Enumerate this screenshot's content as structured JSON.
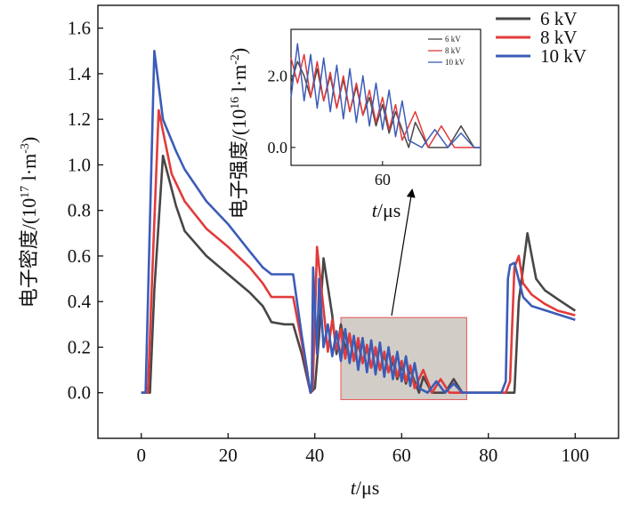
{
  "chart_data": {
    "type": "line",
    "title": "",
    "xlabel_italic": "t",
    "xlabel_unit": "/μs",
    "ylabel_text": "电子密度/(10",
    "ylabel_exp": "17",
    "ylabel_unit": " l·m",
    "ylabel_unit_exp": "-3",
    "ylabel_close": ")",
    "xlim": [
      -10,
      110
    ],
    "ylim": [
      -0.2,
      1.7
    ],
    "x_ticks": [
      0,
      20,
      40,
      60,
      80,
      100
    ],
    "y_ticks": [
      0.0,
      0.2,
      0.4,
      0.6,
      0.8,
      1.0,
      1.2,
      1.4,
      1.6
    ],
    "x_tick_labels": [
      "0",
      "20",
      "40",
      "60",
      "80",
      "100"
    ],
    "y_tick_labels": [
      "0.0",
      "0.2",
      "0.4",
      "0.6",
      "0.8",
      "1.0",
      "1.2",
      "1.4",
      "1.6"
    ],
    "legend_position": "top-right",
    "series": [
      {
        "name": "6 kV",
        "color": "#4a4646",
        "points": [
          [
            0,
            0
          ],
          [
            2,
            0
          ],
          [
            3,
            0.45
          ],
          [
            5,
            1.04
          ],
          [
            8,
            0.82
          ],
          [
            10,
            0.71
          ],
          [
            15,
            0.6
          ],
          [
            20,
            0.52
          ],
          [
            25,
            0.44
          ],
          [
            28,
            0.38
          ],
          [
            30,
            0.31
          ],
          [
            33,
            0.3
          ],
          [
            35,
            0.3
          ],
          [
            37,
            0.17
          ],
          [
            39,
            0
          ],
          [
            40,
            0.02
          ],
          [
            41,
            0.25
          ],
          [
            42,
            0.59
          ],
          [
            44,
            0.34
          ],
          [
            45,
            0.17
          ],
          [
            46,
            0.3
          ],
          [
            47,
            0.19
          ],
          [
            48,
            0.25
          ],
          [
            49,
            0.14
          ],
          [
            50,
            0.22
          ],
          [
            51,
            0.13
          ],
          [
            52,
            0.2
          ],
          [
            53,
            0.11
          ],
          [
            54,
            0.19
          ],
          [
            55,
            0.1
          ],
          [
            56,
            0.17
          ],
          [
            57,
            0.09
          ],
          [
            58,
            0.14
          ],
          [
            59,
            0.06
          ],
          [
            60,
            0.12
          ],
          [
            61,
            0.04
          ],
          [
            62,
            0.1
          ],
          [
            64,
            0
          ],
          [
            65,
            0.07
          ],
          [
            67,
            0
          ],
          [
            70,
            0
          ],
          [
            72,
            0.06
          ],
          [
            74,
            0
          ],
          [
            80,
            0
          ],
          [
            86,
            0
          ],
          [
            87,
            0.4
          ],
          [
            88,
            0.55
          ],
          [
            89,
            0.7
          ],
          [
            91,
            0.5
          ],
          [
            93,
            0.45
          ],
          [
            96,
            0.41
          ],
          [
            100,
            0.36
          ]
        ]
      },
      {
        "name": "8 kV",
        "color": "#e23b3b",
        "points": [
          [
            0,
            0
          ],
          [
            1.5,
            0
          ],
          [
            2.5,
            0.5
          ],
          [
            4,
            1.24
          ],
          [
            7,
            0.96
          ],
          [
            10,
            0.84
          ],
          [
            15,
            0.72
          ],
          [
            20,
            0.64
          ],
          [
            25,
            0.55
          ],
          [
            28,
            0.48
          ],
          [
            30,
            0.42
          ],
          [
            33,
            0.42
          ],
          [
            35,
            0.42
          ],
          [
            37,
            0.22
          ],
          [
            39,
            0
          ],
          [
            39.5,
            0.02
          ],
          [
            40,
            0.32
          ],
          [
            40.5,
            0.64
          ],
          [
            42,
            0.37
          ],
          [
            43,
            0.18
          ],
          [
            44,
            0.32
          ],
          [
            45,
            0.19
          ],
          [
            46,
            0.28
          ],
          [
            47,
            0.15
          ],
          [
            48,
            0.26
          ],
          [
            49,
            0.14
          ],
          [
            50,
            0.24
          ],
          [
            51,
            0.13
          ],
          [
            52,
            0.21
          ],
          [
            53,
            0.11
          ],
          [
            54,
            0.2
          ],
          [
            55,
            0.1
          ],
          [
            56,
            0.18
          ],
          [
            57,
            0.09
          ],
          [
            58,
            0.16
          ],
          [
            59,
            0.07
          ],
          [
            60,
            0.14
          ],
          [
            61,
            0.05
          ],
          [
            62,
            0.12
          ],
          [
            63,
            0.02
          ],
          [
            65,
            0.1
          ],
          [
            67,
            0
          ],
          [
            69,
            0.06
          ],
          [
            71,
            0
          ],
          [
            80,
            0
          ],
          [
            84,
            0
          ],
          [
            85,
            0.05
          ],
          [
            86,
            0.55
          ],
          [
            87,
            0.6
          ],
          [
            88,
            0.48
          ],
          [
            90,
            0.43
          ],
          [
            93,
            0.39
          ],
          [
            96,
            0.36
          ],
          [
            100,
            0.34
          ]
        ]
      },
      {
        "name": "10 kV",
        "color": "#3b5cb8",
        "points": [
          [
            0,
            0
          ],
          [
            1,
            0
          ],
          [
            1.8,
            0.6
          ],
          [
            3,
            1.5
          ],
          [
            5,
            1.2
          ],
          [
            8,
            1.06
          ],
          [
            10,
            0.98
          ],
          [
            15,
            0.84
          ],
          [
            20,
            0.74
          ],
          [
            25,
            0.62
          ],
          [
            28,
            0.55
          ],
          [
            30,
            0.52
          ],
          [
            33,
            0.52
          ],
          [
            35,
            0.52
          ],
          [
            37,
            0.25
          ],
          [
            39,
            0
          ],
          [
            39.3,
            0.02
          ],
          [
            39.6,
            0.55
          ],
          [
            40.5,
            0.17
          ],
          [
            41,
            0.5
          ],
          [
            42,
            0.2
          ],
          [
            43,
            0.3
          ],
          [
            44,
            0.16
          ],
          [
            45,
            0.27
          ],
          [
            46,
            0.14
          ],
          [
            47,
            0.28
          ],
          [
            48,
            0.13
          ],
          [
            49,
            0.25
          ],
          [
            50,
            0.1
          ],
          [
            51,
            0.24
          ],
          [
            52,
            0.09
          ],
          [
            53,
            0.23
          ],
          [
            54,
            0.08
          ],
          [
            55,
            0.22
          ],
          [
            56,
            0.07
          ],
          [
            57,
            0.2
          ],
          [
            58,
            0.06
          ],
          [
            59,
            0.18
          ],
          [
            60,
            0.05
          ],
          [
            61,
            0.16
          ],
          [
            62,
            0.03
          ],
          [
            63,
            0.13
          ],
          [
            64,
            0.02
          ],
          [
            66,
            0
          ],
          [
            68,
            0.05
          ],
          [
            70,
            0
          ],
          [
            72,
            0.04
          ],
          [
            74,
            0
          ],
          [
            80,
            0
          ],
          [
            83,
            0
          ],
          [
            84,
            0.05
          ],
          [
            84.5,
            0.5
          ],
          [
            85,
            0.56
          ],
          [
            86,
            0.57
          ],
          [
            88,
            0.42
          ],
          [
            90,
            0.38
          ],
          [
            95,
            0.35
          ],
          [
            100,
            0.32
          ]
        ]
      }
    ],
    "highlight_box": {
      "x": [
        46,
        75
      ],
      "y": [
        -0.03,
        0.33
      ]
    },
    "inset": {
      "xlabel_italic": "t",
      "xlabel_unit": "/μs",
      "ylabel_text": "电子强度/(10",
      "ylabel_exp": "16",
      "ylabel_unit": " l·m",
      "ylabel_unit_exp": "-2",
      "ylabel_close": ")",
      "xlim": [
        46,
        75
      ],
      "ylim": [
        -0.5,
        3.3
      ],
      "x_ticks": [
        60
      ],
      "y_ticks": [
        0.0,
        2.0
      ],
      "x_tick_labels": [
        "60"
      ],
      "y_tick_labels": [
        "0.0",
        "2.0"
      ],
      "legend_position": "top-left",
      "series": [
        {
          "name": "6 kV",
          "color": "#4a4646",
          "points": [
            [
              46,
              1.8
            ],
            [
              47,
              2.4
            ],
            [
              48,
              2.0
            ],
            [
              49,
              1.4
            ],
            [
              50,
              2.2
            ],
            [
              51,
              1.3
            ],
            [
              52,
              2.0
            ],
            [
              53,
              1.1
            ],
            [
              54,
              1.9
            ],
            [
              55,
              1.0
            ],
            [
              56,
              1.7
            ],
            [
              57,
              0.9
            ],
            [
              58,
              1.4
            ],
            [
              59,
              0.6
            ],
            [
              60,
              1.2
            ],
            [
              61,
              0.4
            ],
            [
              62,
              1.0
            ],
            [
              64,
              0
            ],
            [
              65,
              0.7
            ],
            [
              67,
              0
            ],
            [
              70,
              0
            ],
            [
              72,
              0.6
            ],
            [
              74,
              0
            ],
            [
              75,
              0
            ]
          ]
        },
        {
          "name": "8 kV",
          "color": "#e23b3b",
          "points": [
            [
              46,
              2.5
            ],
            [
              47,
              1.8
            ],
            [
              48,
              2.6
            ],
            [
              49,
              1.4
            ],
            [
              50,
              2.4
            ],
            [
              51,
              1.3
            ],
            [
              52,
              2.1
            ],
            [
              53,
              1.1
            ],
            [
              54,
              2.0
            ],
            [
              55,
              1.0
            ],
            [
              56,
              1.8
            ],
            [
              57,
              0.9
            ],
            [
              58,
              1.6
            ],
            [
              59,
              0.7
            ],
            [
              60,
              1.4
            ],
            [
              61,
              0.5
            ],
            [
              62,
              1.2
            ],
            [
              63,
              0.2
            ],
            [
              65,
              1.0
            ],
            [
              67,
              0
            ],
            [
              69,
              0.6
            ],
            [
              71,
              0
            ],
            [
              75,
              0
            ]
          ]
        },
        {
          "name": "10 kV",
          "color": "#3b5cb8",
          "points": [
            [
              46,
              1.4
            ],
            [
              47,
              2.9
            ],
            [
              48,
              1.3
            ],
            [
              49,
              2.6
            ],
            [
              50,
              1.1
            ],
            [
              51,
              2.5
            ],
            [
              52,
              1.0
            ],
            [
              53,
              2.3
            ],
            [
              54,
              0.8
            ],
            [
              55,
              2.2
            ],
            [
              56,
              0.7
            ],
            [
              57,
              2.0
            ],
            [
              58,
              0.6
            ],
            [
              59,
              1.8
            ],
            [
              60,
              0.5
            ],
            [
              61,
              1.6
            ],
            [
              62,
              0.3
            ],
            [
              63,
              1.3
            ],
            [
              64,
              0.2
            ],
            [
              66,
              0
            ],
            [
              68,
              0.5
            ],
            [
              70,
              0
            ],
            [
              72,
              0.4
            ],
            [
              74,
              0
            ],
            [
              75,
              0
            ]
          ]
        }
      ]
    }
  }
}
